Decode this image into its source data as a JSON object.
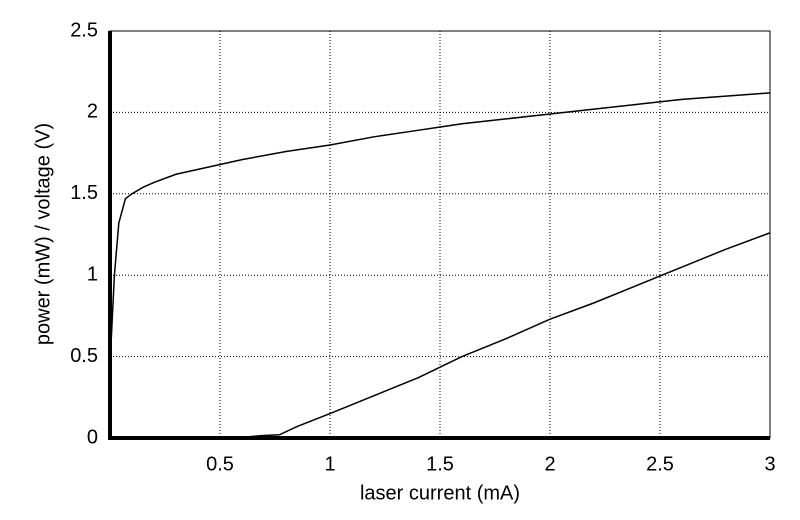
{
  "chart_data": {
    "type": "line",
    "x_label": "laser current (mA)",
    "y_label": "power (mW) / voltage (V)",
    "xlim": [
      0,
      3
    ],
    "xticks": [
      0.5,
      1,
      1.5,
      2,
      2.5,
      3
    ],
    "ylim": [
      0,
      2.5
    ],
    "yticks": [
      0,
      0.5,
      1,
      1.5,
      2,
      2.5
    ],
    "grid": true,
    "series": [
      {
        "color": "#000000",
        "x": [
          0,
          0.02,
          0.04,
          0.07,
          0.1,
          0.15,
          0.2,
          0.3,
          0.4,
          0.5,
          0.6,
          0.8,
          1.0,
          1.2,
          1.4,
          1.6,
          1.8,
          2.0,
          2.2,
          2.4,
          2.6,
          2.8,
          3.0
        ],
        "values": [
          0.45,
          1.0,
          1.32,
          1.47,
          1.5,
          1.54,
          1.57,
          1.62,
          1.65,
          1.68,
          1.71,
          1.76,
          1.8,
          1.85,
          1.89,
          1.93,
          1.96,
          1.99,
          2.02,
          2.05,
          2.08,
          2.1,
          2.12
        ]
      },
      {
        "color": "#000000",
        "x": [
          0,
          0.3,
          0.6,
          0.7,
          0.77,
          0.85,
          1.0,
          1.2,
          1.4,
          1.6,
          1.8,
          2.0,
          2.2,
          2.4,
          2.6,
          2.8,
          3.0
        ],
        "values": [
          0,
          0,
          0.005,
          0.015,
          0.02,
          0.07,
          0.15,
          0.26,
          0.37,
          0.5,
          0.61,
          0.73,
          0.83,
          0.94,
          1.05,
          1.16,
          1.26
        ]
      }
    ]
  }
}
